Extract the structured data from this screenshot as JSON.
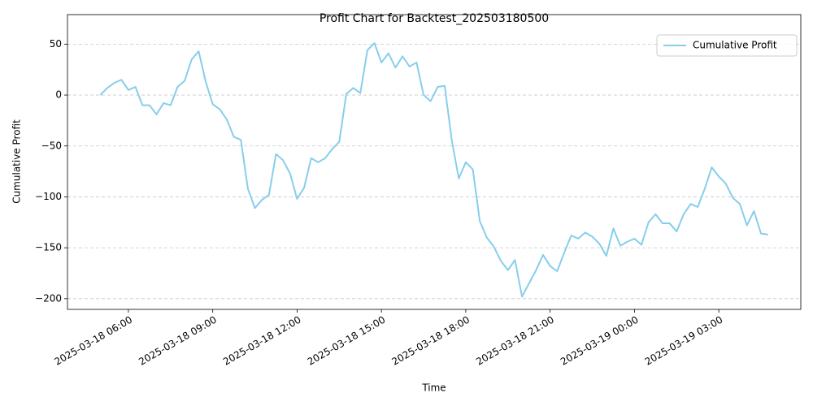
{
  "chart_data": {
    "type": "line",
    "title": "Profit Chart for Backtest_202503180500",
    "xlabel": "Time",
    "ylabel": "Cumulative Profit",
    "x": [
      "2025-03-18 05:00",
      "2025-03-18 05:15",
      "2025-03-18 05:30",
      "2025-03-18 05:45",
      "2025-03-18 06:00",
      "2025-03-18 06:15",
      "2025-03-18 06:30",
      "2025-03-18 06:45",
      "2025-03-18 07:00",
      "2025-03-18 07:15",
      "2025-03-18 07:30",
      "2025-03-18 07:45",
      "2025-03-18 08:00",
      "2025-03-18 08:15",
      "2025-03-18 08:30",
      "2025-03-18 08:45",
      "2025-03-18 09:00",
      "2025-03-18 09:15",
      "2025-03-18 09:30",
      "2025-03-18 09:45",
      "2025-03-18 10:00",
      "2025-03-18 10:15",
      "2025-03-18 10:30",
      "2025-03-18 10:45",
      "2025-03-18 11:00",
      "2025-03-18 11:15",
      "2025-03-18 11:30",
      "2025-03-18 11:45",
      "2025-03-18 12:00",
      "2025-03-18 12:15",
      "2025-03-18 12:30",
      "2025-03-18 12:45",
      "2025-03-18 13:00",
      "2025-03-18 13:15",
      "2025-03-18 13:30",
      "2025-03-18 13:45",
      "2025-03-18 14:00",
      "2025-03-18 14:15",
      "2025-03-18 14:30",
      "2025-03-18 14:45",
      "2025-03-18 15:00",
      "2025-03-18 15:15",
      "2025-03-18 15:30",
      "2025-03-18 15:45",
      "2025-03-18 16:00",
      "2025-03-18 16:15",
      "2025-03-18 16:30",
      "2025-03-18 16:45",
      "2025-03-18 17:00",
      "2025-03-18 17:15",
      "2025-03-18 17:30",
      "2025-03-18 17:45",
      "2025-03-18 18:00",
      "2025-03-18 18:15",
      "2025-03-18 18:30",
      "2025-03-18 18:45",
      "2025-03-18 19:00",
      "2025-03-18 19:15",
      "2025-03-18 19:30",
      "2025-03-18 19:45",
      "2025-03-18 20:00",
      "2025-03-18 20:15",
      "2025-03-18 20:30",
      "2025-03-18 20:45",
      "2025-03-18 21:00",
      "2025-03-18 21:15",
      "2025-03-18 21:30",
      "2025-03-18 21:45",
      "2025-03-18 22:00",
      "2025-03-18 22:15",
      "2025-03-18 22:30",
      "2025-03-18 22:45",
      "2025-03-18 23:00",
      "2025-03-18 23:15",
      "2025-03-18 23:30",
      "2025-03-18 23:45",
      "2025-03-19 00:00",
      "2025-03-19 00:15",
      "2025-03-19 00:30",
      "2025-03-19 00:45",
      "2025-03-19 01:00",
      "2025-03-19 01:15",
      "2025-03-19 01:30",
      "2025-03-19 01:45",
      "2025-03-19 02:00",
      "2025-03-19 02:15",
      "2025-03-19 02:30",
      "2025-03-19 02:45",
      "2025-03-19 03:00",
      "2025-03-19 03:15",
      "2025-03-19 03:30",
      "2025-03-19 03:45",
      "2025-03-19 04:00",
      "2025-03-19 04:15",
      "2025-03-19 04:30",
      "2025-03-19 04:45"
    ],
    "series": [
      {
        "name": "Cumulative Profit",
        "color": "#87ceeb",
        "values": [
          0,
          7,
          12,
          15,
          5,
          8,
          -10,
          -10,
          -19,
          -8,
          -10,
          8,
          14,
          35,
          43,
          13,
          -9,
          -14,
          -24,
          -41,
          -44,
          -92,
          -111,
          -103,
          -98,
          -58,
          -64,
          -77,
          -102,
          -91,
          -62,
          -66,
          -62,
          -53,
          -46,
          1,
          7,
          2,
          44,
          51,
          32,
          41,
          27,
          38,
          28,
          32,
          0,
          -6,
          8,
          9,
          -44,
          -82,
          -66,
          -73,
          -124,
          -140,
          -149,
          -163,
          -172,
          -162,
          -198,
          -185,
          -172,
          -157,
          -168,
          -173,
          -155,
          -138,
          -141,
          -135,
          -139,
          -146,
          -158,
          -131,
          -148,
          -144,
          -141,
          -147,
          -125,
          -117,
          -126,
          -126,
          -134,
          -117,
          -107,
          -110,
          -92,
          -71,
          -80,
          -87,
          -101,
          -107,
          -128,
          -114,
          -136,
          -137
        ]
      }
    ],
    "xlim": [
      "2025-03-18 03:50",
      "2025-03-19 05:55"
    ],
    "xticks": [
      "2025-03-18 06:00",
      "2025-03-18 09:00",
      "2025-03-18 12:00",
      "2025-03-18 15:00",
      "2025-03-18 18:00",
      "2025-03-18 21:00",
      "2025-03-19 00:00",
      "2025-03-19 03:00"
    ],
    "ylim": [
      -210.5,
      79
    ],
    "yticks": [
      {
        "value": -200,
        "label": "−200"
      },
      {
        "value": -150,
        "label": "−150"
      },
      {
        "value": -100,
        "label": "−100"
      },
      {
        "value": -50,
        "label": "−50"
      },
      0,
      50
    ],
    "grid": "y",
    "legend": "upper right"
  }
}
